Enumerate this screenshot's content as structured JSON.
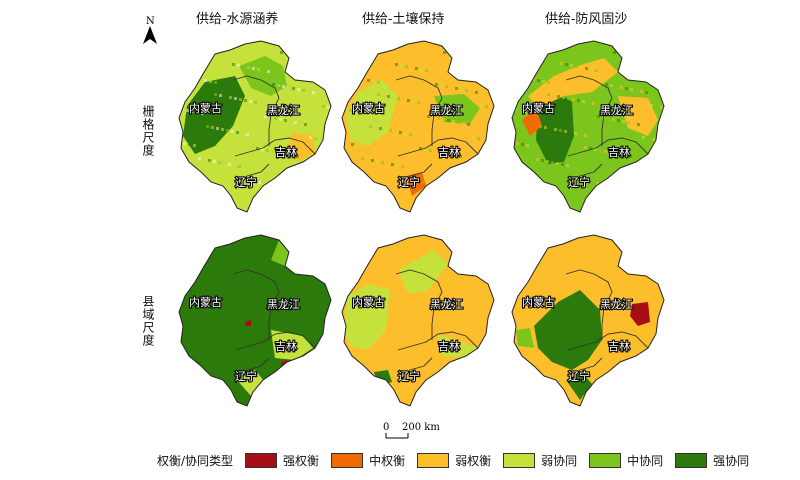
{
  "column_titles": [
    "供给-水源涵养",
    "供给-土壤保持",
    "供给-防风固沙"
  ],
  "row_labels": [
    "栅格尺度",
    "县域尺度"
  ],
  "north_label": "N",
  "scale": {
    "zero": "0",
    "value": "200 km"
  },
  "province_labels": {
    "nmg": "内蒙古",
    "hlj": "黑龙江",
    "jl": "吉林",
    "ln": "辽宁"
  },
  "legend": {
    "title": "权衡/协同类型",
    "items": [
      {
        "label": "强权衡",
        "color": "#a50f15"
      },
      {
        "label": "中权衡",
        "color": "#f26b00"
      },
      {
        "label": "弱权衡",
        "color": "#fcbf2b"
      },
      {
        "label": "弱协同",
        "color": "#c5e23c"
      },
      {
        "label": "中协同",
        "color": "#7cc51d"
      },
      {
        "label": "强协同",
        "color": "#2b7a0b"
      }
    ]
  }
}
